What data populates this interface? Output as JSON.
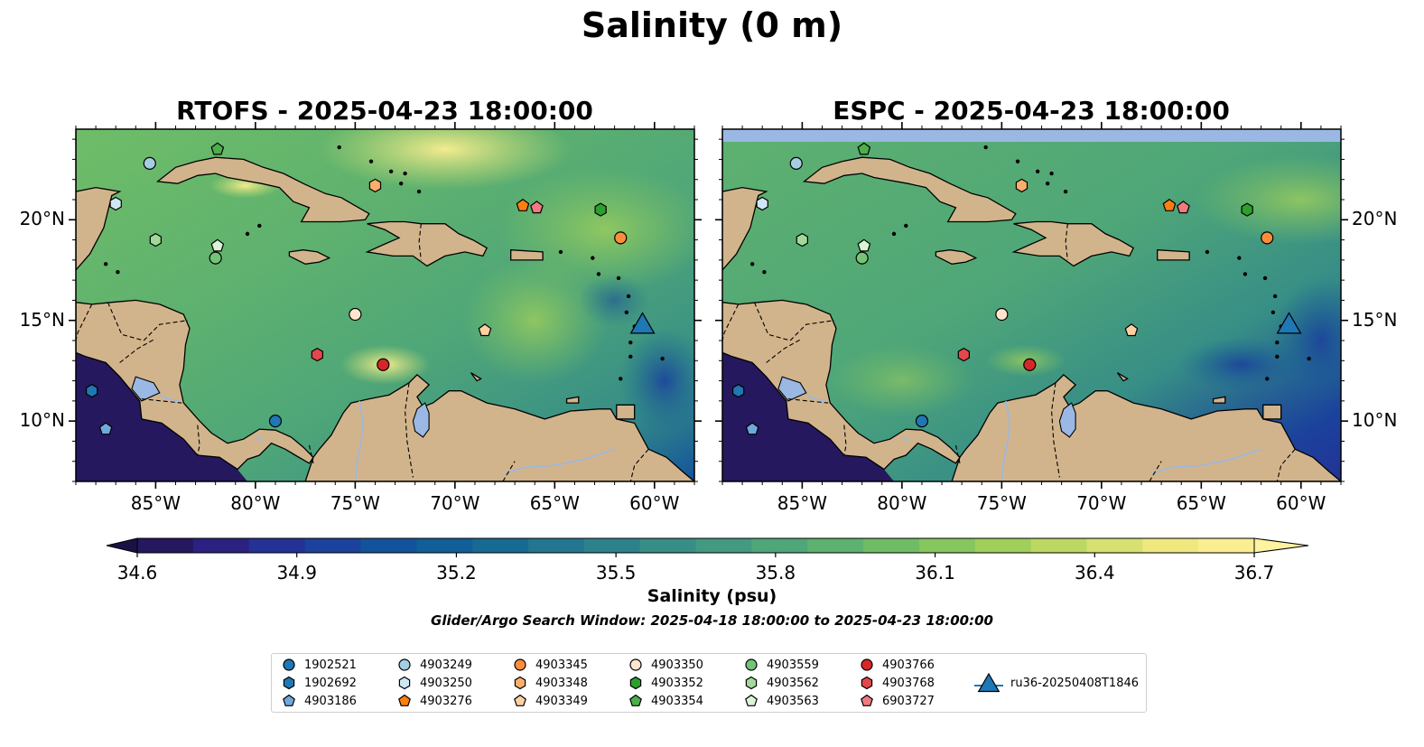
{
  "figure": {
    "title": "Salinity (0 m)",
    "search_window": "Glider/Argo Search Window: 2025-04-18 18:00:00 to 2025-04-23 18:00:00"
  },
  "panels": [
    {
      "title": "RTOFS - 2025-04-23 18:00:00",
      "model": "RTOFS"
    },
    {
      "title": "ESPC - 2025-04-23 18:00:00",
      "model": "ESPC"
    }
  ],
  "axes": {
    "x_ticks": [
      "85°W",
      "80°W",
      "75°W",
      "70°W",
      "65°W",
      "60°W"
    ],
    "x_values": [
      -85,
      -80,
      -75,
      -70,
      -65,
      -60
    ],
    "y_ticks": [
      "20°N",
      "15°N",
      "10°N"
    ],
    "y_values": [
      20,
      15,
      10
    ],
    "lon_range": [
      -89,
      -58
    ],
    "lat_range": [
      7,
      24.5
    ]
  },
  "colorbar": {
    "label": "Salinity (psu)",
    "ticks": [
      "34.6",
      "34.9",
      "35.2",
      "35.5",
      "35.8",
      "36.1",
      "36.4",
      "36.7"
    ],
    "range": [
      34.6,
      36.7
    ],
    "colors": [
      "#26185e",
      "#2a2180",
      "#243296",
      "#1b429c",
      "#13539b",
      "#115f98",
      "#176a93",
      "#22768f",
      "#2c828b",
      "#378e86",
      "#429a80",
      "#4fa678",
      "#5eb16f",
      "#70bc66",
      "#85c65e",
      "#a0cf5b",
      "#bcd861",
      "#d6e16f",
      "#eee87f",
      "#fbee92"
    ]
  },
  "colors": {
    "land": "#d2b48c",
    "lakes": "#9ab8e3",
    "ocean_deep_low_salinity": "#26185e",
    "ocean_mid": "#5eb16f",
    "ocean_high": "#fbee92"
  },
  "legend": [
    {
      "label": "1902521",
      "marker": "circle",
      "color": "#1f77b4"
    },
    {
      "label": "1902692",
      "marker": "hexagon",
      "color": "#1f77b4"
    },
    {
      "label": "4903186",
      "marker": "pentagon",
      "color": "#6fa8dc"
    },
    {
      "label": "4903249",
      "marker": "circle",
      "color": "#a6cee3"
    },
    {
      "label": "4903250",
      "marker": "hexagon",
      "color": "#cfe7f5"
    },
    {
      "label": "4903276",
      "marker": "pentagon",
      "color": "#ff7f0e"
    },
    {
      "label": "4903345",
      "marker": "circle",
      "color": "#fd8d3c"
    },
    {
      "label": "4903348",
      "marker": "hexagon",
      "color": "#fdae6b"
    },
    {
      "label": "4903349",
      "marker": "pentagon",
      "color": "#fdd0a2"
    },
    {
      "label": "4903350",
      "marker": "circle",
      "color": "#fee6ce"
    },
    {
      "label": "4903352",
      "marker": "hexagon",
      "color": "#2ca02c"
    },
    {
      "label": "4903354",
      "marker": "pentagon",
      "color": "#4daf4a"
    },
    {
      "label": "4903559",
      "marker": "circle",
      "color": "#74c476"
    },
    {
      "label": "4903562",
      "marker": "hexagon",
      "color": "#a1d99b"
    },
    {
      "label": "4903563",
      "marker": "pentagon",
      "color": "#d9f5d3"
    },
    {
      "label": "4903766",
      "marker": "circle",
      "color": "#d62728"
    },
    {
      "label": "4903768",
      "marker": "hexagon",
      "color": "#e3474c"
    },
    {
      "label": "6903727",
      "marker": "pentagon",
      "color": "#f07a80"
    },
    {
      "label": "ru36-20250408T1846",
      "marker": "triangle",
      "color": "#1f77b4"
    }
  ],
  "observations": [
    {
      "id": "1902521",
      "marker": "circle",
      "color": "#1f77b4",
      "lon": -79.0,
      "lat": 10.0
    },
    {
      "id": "1902692",
      "marker": "hexagon",
      "color": "#1f77b4",
      "lon": -88.2,
      "lat": 11.5
    },
    {
      "id": "4903186",
      "marker": "pentagon",
      "color": "#6fa8dc",
      "lon": -87.5,
      "lat": 9.6
    },
    {
      "id": "4903249",
      "marker": "circle",
      "color": "#a6cee3",
      "lon": -85.3,
      "lat": 22.8
    },
    {
      "id": "4903250",
      "marker": "hexagon",
      "color": "#cfe7f5",
      "lon": -87.0,
      "lat": 20.8
    },
    {
      "id": "4903276",
      "marker": "pentagon",
      "color": "#ff7f0e",
      "lon": -66.6,
      "lat": 20.7
    },
    {
      "id": "4903345",
      "marker": "circle",
      "color": "#fd8d3c",
      "lon": -61.7,
      "lat": 19.1
    },
    {
      "id": "4903348",
      "marker": "hexagon",
      "color": "#fdae6b",
      "lon": -74.0,
      "lat": 21.7
    },
    {
      "id": "4903349",
      "marker": "pentagon",
      "color": "#fdd0a2",
      "lon": -68.5,
      "lat": 14.5
    },
    {
      "id": "4903350",
      "marker": "circle",
      "color": "#fee6ce",
      "lon": -75.0,
      "lat": 15.3
    },
    {
      "id": "4903352",
      "marker": "hexagon",
      "color": "#2ca02c",
      "lon": -62.7,
      "lat": 20.5
    },
    {
      "id": "4903354",
      "marker": "pentagon",
      "color": "#4daf4a",
      "lon": -81.9,
      "lat": 23.5
    },
    {
      "id": "4903559",
      "marker": "circle",
      "color": "#74c476",
      "lon": -82.0,
      "lat": 18.1
    },
    {
      "id": "4903562",
      "marker": "hexagon",
      "color": "#a1d99b",
      "lon": -85.0,
      "lat": 19.0
    },
    {
      "id": "4903563",
      "marker": "pentagon",
      "color": "#d9f5d3",
      "lon": -81.9,
      "lat": 18.7
    },
    {
      "id": "4903766",
      "marker": "circle",
      "color": "#d62728",
      "lon": -73.6,
      "lat": 12.8
    },
    {
      "id": "4903768",
      "marker": "hexagon",
      "color": "#e3474c",
      "lon": -76.9,
      "lat": 13.3
    },
    {
      "id": "6903727",
      "marker": "pentagon",
      "color": "#f07a80",
      "lon": -65.9,
      "lat": 20.6
    },
    {
      "id": "ru36-20250408T1846",
      "marker": "triangle",
      "color": "#1f77b4",
      "lon": -60.6,
      "lat": 14.7
    }
  ]
}
